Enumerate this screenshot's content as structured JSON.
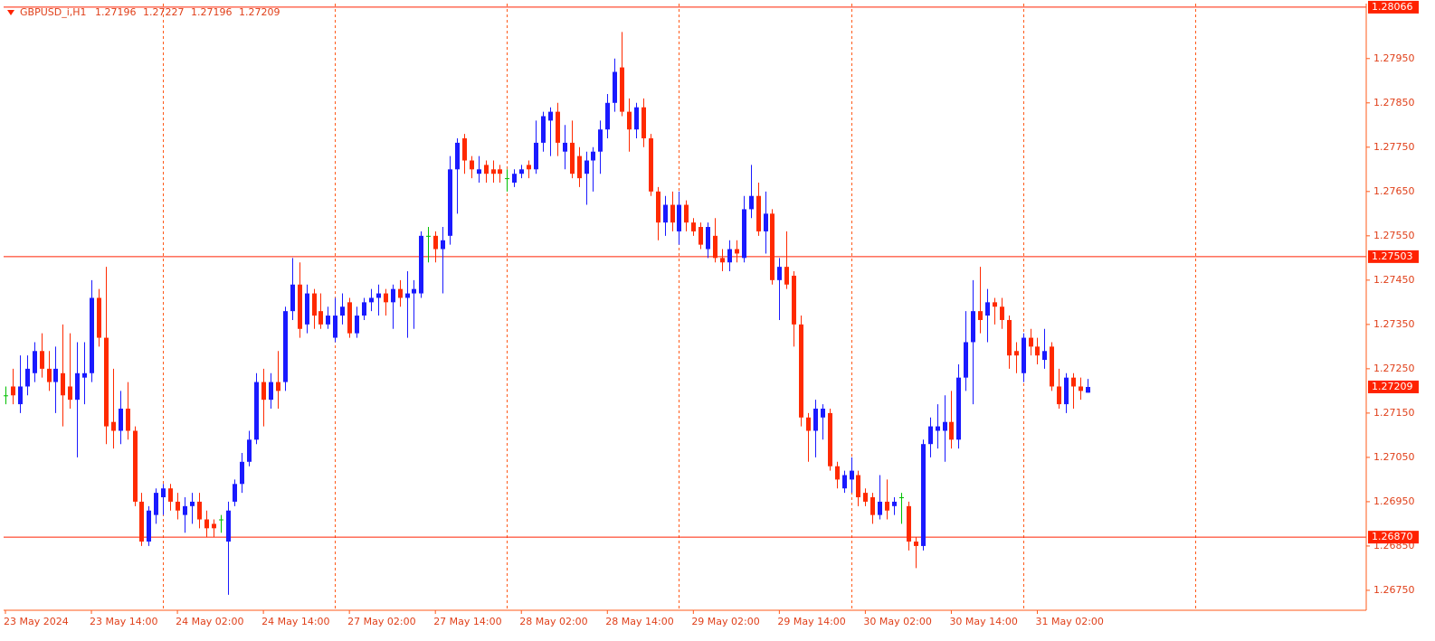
{
  "chart_data": {
    "type": "candlestick",
    "title": "GBPUSD_i,H1",
    "up_color": "#1a1aff",
    "down_color": "#ff2a00",
    "doji_color": "#00c000",
    "line_color": "#ff2200",
    "categories": [
      "23 May 2024",
      null,
      null,
      null,
      null,
      null,
      null,
      null,
      null,
      null,
      null,
      null,
      "23 May 14:00",
      null,
      null,
      null,
      null,
      null,
      null,
      null,
      null,
      null,
      null,
      null,
      "24 May 02:00",
      null,
      null,
      null,
      null,
      null,
      null,
      null,
      null,
      null,
      null,
      null,
      "24 May 14:00",
      null,
      null,
      null,
      null,
      null,
      null,
      null,
      null,
      null,
      null,
      null,
      "27 May 02:00",
      null,
      null,
      null,
      null,
      null,
      null,
      null,
      null,
      null,
      null,
      null,
      "27 May 14:00",
      null,
      null,
      null,
      null,
      null,
      null,
      null,
      null,
      null,
      null,
      null,
      "28 May 02:00",
      null,
      null,
      null,
      null,
      null,
      null,
      null,
      null,
      null,
      null,
      null,
      "28 May 14:00",
      null,
      null,
      null,
      null,
      null,
      null,
      null,
      null,
      null,
      null,
      null,
      "29 May 02:00",
      null,
      null,
      null,
      null,
      null,
      null,
      null,
      null,
      null,
      null,
      null,
      "29 May 14:00",
      null,
      null,
      null,
      null,
      null,
      null,
      null,
      null,
      null,
      null,
      null,
      "30 May 02:00",
      null,
      null,
      null,
      null,
      null,
      null,
      null,
      null,
      null,
      null,
      null,
      "30 May 14:00",
      null,
      null,
      null,
      null,
      null,
      null,
      null,
      null,
      null,
      null,
      null,
      "31 May 02:00",
      null,
      null,
      null,
      null,
      null,
      null,
      null
    ],
    "open": [
      1.2719,
      1.2721,
      1.2717,
      1.2721,
      1.2724,
      1.2729,
      1.2725,
      1.2722,
      1.2724,
      1.2721,
      1.2718,
      1.2723,
      1.2724,
      1.2741,
      1.2732,
      1.2713,
      1.2711,
      1.2716,
      1.2711,
      1.2695,
      1.2686,
      1.2692,
      1.2696,
      1.2698,
      1.2695,
      1.2692,
      1.2694,
      1.2695,
      1.2691,
      1.269,
      1.2691,
      1.2686,
      1.2695,
      1.2699,
      1.2704,
      1.2709,
      1.2722,
      1.2718,
      1.2722,
      1.2722,
      1.2738,
      1.2744,
      1.2735,
      1.2742,
      1.2738,
      1.2735,
      1.2732,
      1.2737,
      1.274,
      1.2733,
      1.2737,
      1.274,
      1.2741,
      1.2742,
      1.274,
      1.2743,
      1.2741,
      1.2742,
      1.2742,
      1.2755,
      1.2755,
      1.2752,
      1.2755,
      1.277,
      1.2777,
      1.2772,
      1.2769,
      1.2771,
      1.277,
      1.277,
      1.2768,
      1.2767,
      1.2769,
      1.2771,
      1.277,
      1.2776,
      1.2781,
      1.2783,
      1.2774,
      1.2776,
      1.2773,
      1.2769,
      1.2772,
      1.2774,
      1.2779,
      1.2785,
      1.2793,
      1.2783,
      1.2779,
      1.2784,
      1.2777,
      1.2765,
      1.2758,
      1.2762,
      1.2756,
      1.2762,
      1.2758,
      1.2757,
      1.2752,
      1.2755,
      1.275,
      1.2749,
      1.2752,
      1.275,
      1.2761,
      1.2764,
      1.2756,
      1.276,
      1.2745,
      1.2748,
      1.2746,
      1.2735,
      1.2714,
      1.2711,
      1.2714,
      1.2715,
      1.2703,
      1.2698,
      1.27,
      1.2701,
      1.2697,
      1.2696,
      1.2692,
      1.2695,
      1.2694,
      1.2696,
      1.2694,
      1.2686,
      1.2685,
      1.2708,
      1.2711,
      1.2711,
      1.2713,
      1.2709,
      1.2723,
      1.2731,
      1.2738,
      1.2737,
      1.274,
      1.2739,
      1.2736,
      1.2729,
      1.2724,
      1.2732,
      1.273,
      1.2727,
      1.273,
      1.2721,
      1.2717,
      1.2723,
      1.2721,
      1.27196
    ],
    "high": [
      1.2721,
      1.2725,
      1.2728,
      1.2728,
      1.2731,
      1.2733,
      1.2729,
      1.273,
      1.2735,
      1.2733,
      1.2731,
      1.2731,
      1.2745,
      1.2743,
      1.2748,
      1.2725,
      1.272,
      1.2722,
      1.2712,
      1.2697,
      1.2694,
      1.2698,
      1.2699,
      1.2699,
      1.2697,
      1.2696,
      1.2697,
      1.2697,
      1.2693,
      1.2691,
      1.2692,
      1.2695,
      1.27,
      1.2706,
      1.2711,
      1.2724,
      1.2725,
      1.2724,
      1.2729,
      1.2739,
      1.275,
      1.2749,
      1.2744,
      1.2743,
      1.2742,
      1.2739,
      1.2741,
      1.2742,
      1.2741,
      1.2739,
      1.2741,
      1.2743,
      1.2744,
      1.2743,
      1.2744,
      1.2745,
      1.2747,
      1.2745,
      1.2756,
      1.2757,
      1.2756,
      1.2757,
      1.2773,
      1.2777,
      1.2778,
      1.2773,
      1.2773,
      1.2772,
      1.2772,
      1.2771,
      1.277,
      1.277,
      1.2771,
      1.2772,
      1.2781,
      1.2783,
      1.2784,
      1.2785,
      1.278,
      1.2781,
      1.2775,
      1.2774,
      1.2775,
      1.2781,
      1.2787,
      1.2795,
      1.2801,
      1.2786,
      1.2785,
      1.2786,
      1.2778,
      1.2766,
      1.2764,
      1.2765,
      1.2765,
      1.2763,
      1.2759,
      1.2758,
      1.2758,
      1.2759,
      1.2752,
      1.2754,
      1.2754,
      1.2764,
      1.2771,
      1.2767,
      1.2765,
      1.2761,
      1.275,
      1.2756,
      1.2747,
      1.2737,
      1.2715,
      1.2718,
      1.2717,
      1.2716,
      1.2704,
      1.2702,
      1.2705,
      1.2702,
      1.2698,
      1.2697,
      1.2701,
      1.27,
      1.2696,
      1.2697,
      1.2695,
      1.2687,
      1.2709,
      1.2714,
      1.2717,
      1.2719,
      1.272,
      1.2726,
      1.2738,
      1.2745,
      1.2748,
      1.2743,
      1.2741,
      1.2741,
      1.2737,
      1.2731,
      1.2733,
      1.2734,
      1.2732,
      1.2734,
      1.2731,
      1.2725,
      1.2724,
      1.2724,
      1.2723,
      1.27227
    ],
    "low": [
      1.2717,
      1.2717,
      1.2715,
      1.2719,
      1.2722,
      1.2723,
      1.272,
      1.2715,
      1.2712,
      1.2716,
      1.2705,
      1.2717,
      1.2722,
      1.273,
      1.2708,
      1.2707,
      1.2708,
      1.2709,
      1.2694,
      1.2685,
      1.2685,
      1.269,
      1.2692,
      1.2693,
      1.2691,
      1.2688,
      1.269,
      1.2689,
      1.2687,
      1.2687,
      1.2688,
      1.2674,
      1.2694,
      1.2697,
      1.2703,
      1.2708,
      1.2712,
      1.2716,
      1.2716,
      1.272,
      1.2736,
      1.2732,
      1.2733,
      1.2734,
      1.2734,
      1.2734,
      1.2731,
      1.2735,
      1.2732,
      1.2732,
      1.2736,
      1.2738,
      1.2737,
      1.2737,
      1.2734,
      1.2739,
      1.2732,
      1.2734,
      1.2741,
      1.2749,
      1.2749,
      1.2742,
      1.2753,
      1.276,
      1.2769,
      1.2768,
      1.2767,
      1.2767,
      1.2767,
      1.2767,
      1.2765,
      1.2766,
      1.2768,
      1.2768,
      1.2769,
      1.2774,
      1.2773,
      1.2773,
      1.277,
      1.2768,
      1.2766,
      1.2762,
      1.2765,
      1.2769,
      1.2777,
      1.2783,
      1.2782,
      1.2774,
      1.2777,
      1.2775,
      1.2764,
      1.2754,
      1.2755,
      1.2756,
      1.2753,
      1.2756,
      1.2755,
      1.2752,
      1.275,
      1.2749,
      1.2747,
      1.2747,
      1.2749,
      1.2749,
      1.2759,
      1.2755,
      1.2751,
      1.2744,
      1.2736,
      1.2743,
      1.273,
      1.2712,
      1.2704,
      1.2705,
      1.2709,
      1.2702,
      1.2698,
      1.2697,
      1.2697,
      1.2694,
      1.2694,
      1.269,
      1.2691,
      1.2691,
      1.2692,
      1.269,
      1.2684,
      1.268,
      1.2684,
      1.2705,
      1.2707,
      1.2704,
      1.2707,
      1.2707,
      1.272,
      1.2717,
      1.2733,
      1.2731,
      1.2735,
      1.2734,
      1.2725,
      1.2724,
      1.2722,
      1.2728,
      1.2726,
      1.2725,
      1.272,
      1.2716,
      1.2715,
      1.2716,
      1.2718,
      1.27196
    ],
    "close": [
      1.2719,
      1.2719,
      1.2721,
      1.2725,
      1.2729,
      1.2725,
      1.2722,
      1.2725,
      1.2719,
      1.2718,
      1.2724,
      1.2724,
      1.2741,
      1.2732,
      1.2712,
      1.2711,
      1.2716,
      1.2711,
      1.2695,
      1.2686,
      1.2693,
      1.2697,
      1.2698,
      1.2695,
      1.2693,
      1.2694,
      1.2695,
      1.2691,
      1.2689,
      1.2689,
      1.2691,
      1.2693,
      1.2699,
      1.2704,
      1.2709,
      1.2722,
      1.2718,
      1.2722,
      1.272,
      1.2738,
      1.2744,
      1.2734,
      1.2742,
      1.2737,
      1.2735,
      1.2737,
      1.2737,
      1.2739,
      1.2733,
      1.2737,
      1.274,
      1.2741,
      1.2742,
      1.274,
      1.2743,
      1.2741,
      1.2742,
      1.2743,
      1.2755,
      1.2755,
      1.2752,
      1.2754,
      1.277,
      1.2776,
      1.2772,
      1.277,
      1.277,
      1.2769,
      1.2769,
      1.2769,
      1.2768,
      1.2769,
      1.277,
      1.277,
      1.2776,
      1.2782,
      1.2783,
      1.2776,
      1.2776,
      1.2769,
      1.2768,
      1.2772,
      1.2774,
      1.2779,
      1.2785,
      1.2792,
      1.2783,
      1.2779,
      1.2784,
      1.2777,
      1.2765,
      1.2758,
      1.2762,
      1.2758,
      1.2762,
      1.2758,
      1.2756,
      1.2753,
      1.2757,
      1.275,
      1.2749,
      1.2752,
      1.2751,
      1.2761,
      1.2764,
      1.2756,
      1.276,
      1.2745,
      1.2748,
      1.2744,
      1.2735,
      1.2714,
      1.2711,
      1.2716,
      1.2716,
      1.2703,
      1.27,
      1.2701,
      1.2702,
      1.2696,
      1.2695,
      1.2692,
      1.2695,
      1.2693,
      1.2695,
      1.2696,
      1.2686,
      1.2685,
      1.2708,
      1.2712,
      1.2712,
      1.2713,
      1.2709,
      1.2723,
      1.2731,
      1.2738,
      1.2736,
      1.274,
      1.2739,
      1.2736,
      1.2728,
      1.2728,
      1.2732,
      1.273,
      1.2728,
      1.2729,
      1.2721,
      1.2717,
      1.2723,
      1.2721,
      1.272,
      1.27209
    ],
    "ylim": [
      1.26705,
      1.28074
    ],
    "yticks": [
      {
        "value": 1.2675,
        "label": "1.26750"
      },
      {
        "value": 1.2685,
        "label": "1.26850"
      },
      {
        "value": 1.2695,
        "label": "1.26950"
      },
      {
        "value": 1.2705,
        "label": "1.27050"
      },
      {
        "value": 1.2715,
        "label": "1.27150"
      },
      {
        "value": 1.2725,
        "label": "1.27250"
      },
      {
        "value": 1.2735,
        "label": "1.27350"
      },
      {
        "value": 1.2745,
        "label": "1.27450"
      },
      {
        "value": 1.2755,
        "label": "1.27550"
      },
      {
        "value": 1.2765,
        "label": "1.27650"
      },
      {
        "value": 1.2775,
        "label": "1.27750"
      },
      {
        "value": 1.2785,
        "label": "1.27850"
      },
      {
        "value": 1.2795,
        "label": "1.27950"
      }
    ],
    "price_lines": [
      1.28066,
      1.27503,
      {
        "value": 1.2687,
        "label": "1.26870"
      }
    ],
    "current_price": 1.27209
  }
}
